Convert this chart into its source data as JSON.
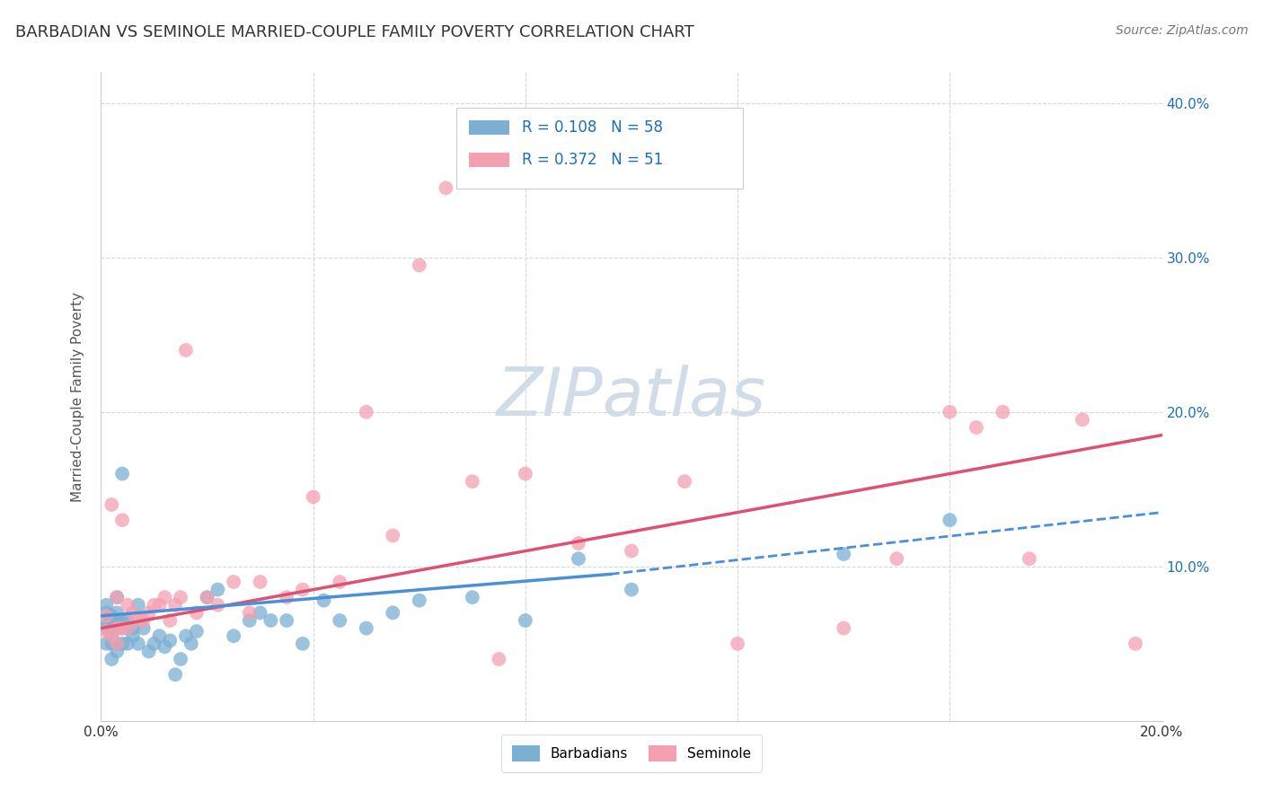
{
  "title": "BARBADIAN VS SEMINOLE MARRIED-COUPLE FAMILY POVERTY CORRELATION CHART",
  "source": "Source: ZipAtlas.com",
  "ylabel": "Married-Couple Family Poverty",
  "xlim": [
    0.0,
    0.2
  ],
  "ylim": [
    0.0,
    0.42
  ],
  "barbadian_R": 0.108,
  "barbadian_N": 58,
  "seminole_R": 0.372,
  "seminole_N": 51,
  "barbadian_color": "#7bafd4",
  "seminole_color": "#f4a0b0",
  "barbadian_line_color": "#4a90d9",
  "seminole_line_color": "#e05070",
  "background_color": "#ffffff",
  "grid_color": "#d0d8e8",
  "watermark_color": "#d0dce8",
  "legend_color": "#1a6fba",
  "barbadian_x": [
    0.001,
    0.001,
    0.001,
    0.001,
    0.001,
    0.002,
    0.002,
    0.002,
    0.002,
    0.002,
    0.002,
    0.003,
    0.003,
    0.003,
    0.003,
    0.003,
    0.003,
    0.004,
    0.004,
    0.004,
    0.004,
    0.005,
    0.005,
    0.005,
    0.006,
    0.006,
    0.007,
    0.007,
    0.008,
    0.009,
    0.01,
    0.011,
    0.012,
    0.013,
    0.014,
    0.015,
    0.016,
    0.017,
    0.018,
    0.02,
    0.022,
    0.025,
    0.028,
    0.03,
    0.032,
    0.035,
    0.038,
    0.042,
    0.045,
    0.05,
    0.055,
    0.06,
    0.07,
    0.08,
    0.09,
    0.1,
    0.14,
    0.16
  ],
  "barbadian_y": [
    0.05,
    0.06,
    0.065,
    0.07,
    0.075,
    0.04,
    0.05,
    0.055,
    0.06,
    0.065,
    0.068,
    0.045,
    0.05,
    0.06,
    0.065,
    0.07,
    0.08,
    0.05,
    0.06,
    0.065,
    0.16,
    0.05,
    0.06,
    0.065,
    0.055,
    0.06,
    0.05,
    0.075,
    0.06,
    0.045,
    0.05,
    0.055,
    0.048,
    0.052,
    0.03,
    0.04,
    0.055,
    0.05,
    0.058,
    0.08,
    0.085,
    0.055,
    0.065,
    0.07,
    0.065,
    0.065,
    0.05,
    0.078,
    0.065,
    0.06,
    0.07,
    0.078,
    0.08,
    0.065,
    0.105,
    0.085,
    0.108,
    0.13
  ],
  "seminole_x": [
    0.001,
    0.001,
    0.002,
    0.002,
    0.003,
    0.003,
    0.003,
    0.004,
    0.004,
    0.005,
    0.005,
    0.006,
    0.007,
    0.008,
    0.009,
    0.01,
    0.011,
    0.012,
    0.013,
    0.014,
    0.015,
    0.016,
    0.018,
    0.02,
    0.022,
    0.025,
    0.028,
    0.03,
    0.035,
    0.038,
    0.04,
    0.045,
    0.05,
    0.055,
    0.06,
    0.065,
    0.07,
    0.075,
    0.08,
    0.09,
    0.1,
    0.11,
    0.12,
    0.14,
    0.15,
    0.16,
    0.165,
    0.17,
    0.175,
    0.185,
    0.195
  ],
  "seminole_y": [
    0.058,
    0.068,
    0.055,
    0.14,
    0.05,
    0.06,
    0.08,
    0.06,
    0.13,
    0.06,
    0.075,
    0.07,
    0.065,
    0.065,
    0.07,
    0.075,
    0.075,
    0.08,
    0.065,
    0.075,
    0.08,
    0.24,
    0.07,
    0.08,
    0.075,
    0.09,
    0.07,
    0.09,
    0.08,
    0.085,
    0.145,
    0.09,
    0.2,
    0.12,
    0.295,
    0.345,
    0.155,
    0.04,
    0.16,
    0.115,
    0.11,
    0.155,
    0.05,
    0.06,
    0.105,
    0.2,
    0.19,
    0.2,
    0.105,
    0.195,
    0.05
  ],
  "barb_line_x0": 0.0,
  "barb_line_x_solid_end": 0.096,
  "barb_line_x1": 0.2,
  "barb_line_y0": 0.068,
  "barb_line_y_solid_end": 0.095,
  "barb_line_y1": 0.135,
  "sem_line_x0": 0.0,
  "sem_line_x1": 0.2,
  "sem_line_y0": 0.06,
  "sem_line_y1": 0.185
}
